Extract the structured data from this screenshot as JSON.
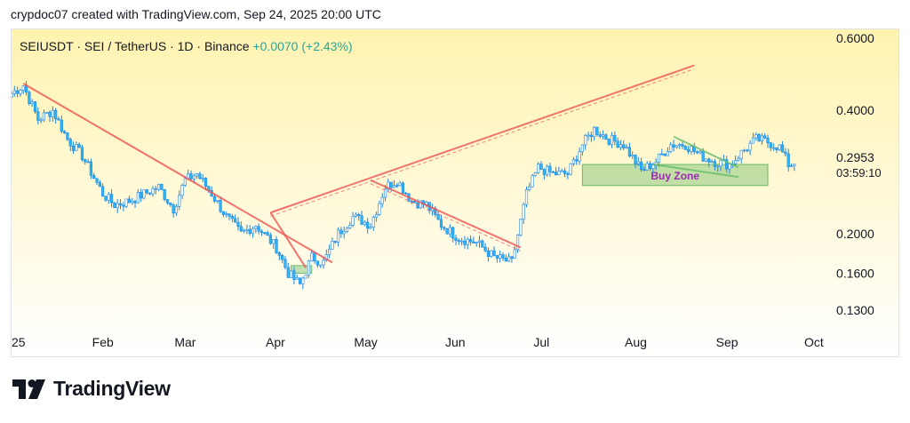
{
  "header": {
    "text": "crypdoc07 created with TradingView.com, Sep 24, 2025 20:00 UTC"
  },
  "symbol": {
    "name": "SEIUSDT · SEI / TetherUS · 1D · Binance",
    "change": "+0.0070 (+2.43%)"
  },
  "footer": {
    "brand": "TradingView"
  },
  "price_label": {
    "price": "0.2953",
    "countdown": "03:59:10"
  },
  "zone_label": "Buy Zone",
  "colors": {
    "up": "#26a69a",
    "wick": "#2196f3",
    "body": "#29b6f6",
    "trend": "#ef5350",
    "zone": "#4caf50",
    "zone_text": "#9c27b0",
    "bg_top": "#fff3b0",
    "bg_bottom": "#ffffff"
  },
  "chart_data": {
    "type": "candlestick",
    "title": "SEIUSDT · SEI / TetherUS · 1D · Binance",
    "scale": "log",
    "y_ticks": [
      0.6,
      0.4,
      0.2,
      0.16,
      0.13
    ],
    "y_tick_labels": [
      "0.6000",
      "0.4000",
      "0.2000",
      "0.1600",
      "0.1300"
    ],
    "x_ticks": [
      "25",
      "Feb",
      "Mar",
      "Apr",
      "May",
      "Jun",
      "Jul",
      "Aug",
      "Sep",
      "Oct"
    ],
    "last_price": 0.2953,
    "close_series": [
      [
        "2025-01-01",
        0.44
      ],
      [
        "2025-01-05",
        0.46
      ],
      [
        "2025-01-10",
        0.38
      ],
      [
        "2025-01-15",
        0.4
      ],
      [
        "2025-01-20",
        0.34
      ],
      [
        "2025-01-25",
        0.31
      ],
      [
        "2025-02-01",
        0.25
      ],
      [
        "2025-02-05",
        0.235
      ],
      [
        "2025-02-10",
        0.24
      ],
      [
        "2025-02-15",
        0.25
      ],
      [
        "2025-02-20",
        0.26
      ],
      [
        "2025-02-25",
        0.23
      ],
      [
        "2025-03-01",
        0.27
      ],
      [
        "2025-03-05",
        0.28
      ],
      [
        "2025-03-10",
        0.25
      ],
      [
        "2025-03-15",
        0.22
      ],
      [
        "2025-03-20",
        0.2
      ],
      [
        "2025-03-25",
        0.21
      ],
      [
        "2025-04-01",
        0.185
      ],
      [
        "2025-04-05",
        0.16
      ],
      [
        "2025-04-09",
        0.15
      ],
      [
        "2025-04-13",
        0.175
      ],
      [
        "2025-04-17",
        0.17
      ],
      [
        "2025-04-22",
        0.2
      ],
      [
        "2025-04-27",
        0.22
      ],
      [
        "2025-05-03",
        0.21
      ],
      [
        "2025-05-08",
        0.26
      ],
      [
        "2025-05-12",
        0.27
      ],
      [
        "2025-05-17",
        0.24
      ],
      [
        "2025-05-22",
        0.235
      ],
      [
        "2025-05-27",
        0.21
      ],
      [
        "2025-06-02",
        0.195
      ],
      [
        "2025-06-08",
        0.19
      ],
      [
        "2025-06-14",
        0.175
      ],
      [
        "2025-06-20",
        0.17
      ],
      [
        "2025-06-25",
        0.25
      ],
      [
        "2025-06-29",
        0.29
      ],
      [
        "2025-07-04",
        0.28
      ],
      [
        "2025-07-09",
        0.28
      ],
      [
        "2025-07-14",
        0.33
      ],
      [
        "2025-07-18",
        0.36
      ],
      [
        "2025-07-23",
        0.34
      ],
      [
        "2025-07-28",
        0.33
      ],
      [
        "2025-08-03",
        0.285
      ],
      [
        "2025-08-08",
        0.3
      ],
      [
        "2025-08-13",
        0.33
      ],
      [
        "2025-08-18",
        0.33
      ],
      [
        "2025-08-23",
        0.31
      ],
      [
        "2025-08-28",
        0.3
      ],
      [
        "2025-09-02",
        0.295
      ],
      [
        "2025-09-07",
        0.32
      ],
      [
        "2025-09-11",
        0.34
      ],
      [
        "2025-09-15",
        0.335
      ],
      [
        "2025-09-19",
        0.325
      ],
      [
        "2025-09-22",
        0.295
      ],
      [
        "2025-09-24",
        0.2953
      ]
    ],
    "trendlines": [
      {
        "from": [
          "2025-01-05",
          0.465
        ],
        "to": [
          "2025-04-20",
          0.17
        ]
      },
      {
        "from": [
          "2025-03-30",
          0.225
        ],
        "to": [
          "2025-08-21",
          0.515
        ]
      },
      {
        "from": [
          "2025-05-03",
          0.27
        ],
        "to": [
          "2025-06-23",
          0.185
        ]
      },
      {
        "from": [
          "2025-03-30",
          0.225
        ],
        "to": [
          "2025-04-11",
          0.165
        ]
      },
      {
        "from": [
          "2025-08-14",
          0.345
        ],
        "to": [
          "2025-09-05",
          0.29
        ]
      },
      {
        "from": [
          "2025-08-07",
          0.295
        ],
        "to": [
          "2025-09-05",
          0.275
        ]
      }
    ],
    "zones": [
      {
        "label": "Buy Zone",
        "from": "2025-07-14",
        "to": "2025-09-15",
        "low": 0.262,
        "high": 0.295
      },
      {
        "label": "",
        "from": "2025-04-06",
        "to": "2025-04-13",
        "low": 0.16,
        "high": 0.167
      }
    ]
  }
}
